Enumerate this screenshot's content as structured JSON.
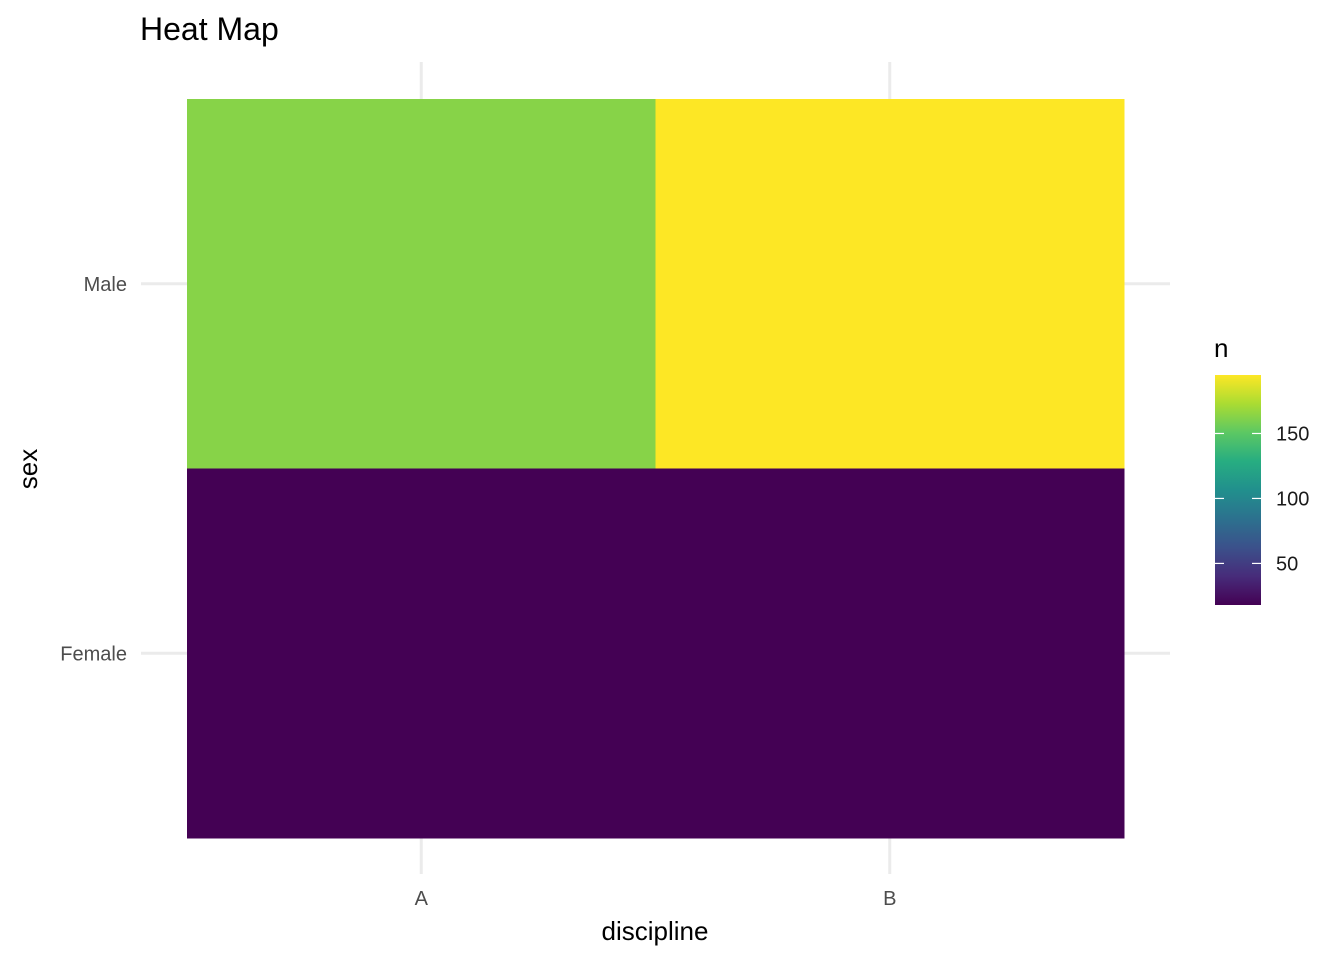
{
  "chart_data": {
    "type": "heatmap",
    "title": "Heat Map",
    "xlabel": "discipline",
    "ylabel": "sex",
    "x_categories": [
      "A",
      "B"
    ],
    "y_categories": [
      "Female",
      "Male"
    ],
    "cells": [
      {
        "x": "A",
        "y": "Male",
        "value": 163
      },
      {
        "x": "B",
        "y": "Male",
        "value": 195
      },
      {
        "x": "A",
        "y": "Female",
        "value": 18
      },
      {
        "x": "B",
        "y": "Female",
        "value": 18
      }
    ],
    "colorscale": "viridis",
    "color_range": [
      18,
      195
    ],
    "legend": {
      "title": "n",
      "ticks": [
        50,
        100,
        150
      ],
      "position": "right"
    },
    "grid": true
  }
}
